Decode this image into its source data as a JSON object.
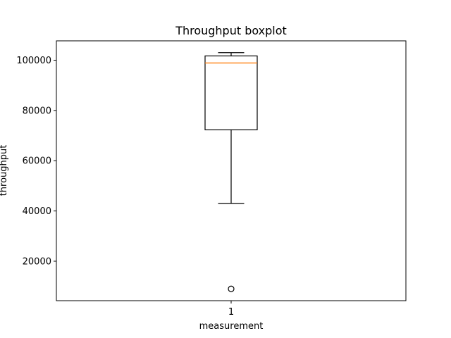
{
  "chart_data": {
    "type": "boxplot",
    "title": "Throughput boxplot",
    "xlabel": "measurement",
    "ylabel": "throughput",
    "categories": [
      "1"
    ],
    "boxes": [
      {
        "label": "1",
        "whisker_low": 43000,
        "q1": 72300,
        "median": 98900,
        "q3": 101700,
        "whisker_high": 103000,
        "outliers": [
          9000
        ]
      }
    ],
    "ylim": [
      4300,
      107700
    ],
    "yticks": [
      20000,
      40000,
      60000,
      80000,
      100000
    ],
    "ytick_labels": [
      "20000",
      "40000",
      "60000",
      "80000",
      "100000"
    ],
    "grid": false,
    "colors": {
      "box": "#000000",
      "median": "#ff7f0e",
      "whisker": "#000000",
      "outlier_edge": "#000000"
    }
  }
}
